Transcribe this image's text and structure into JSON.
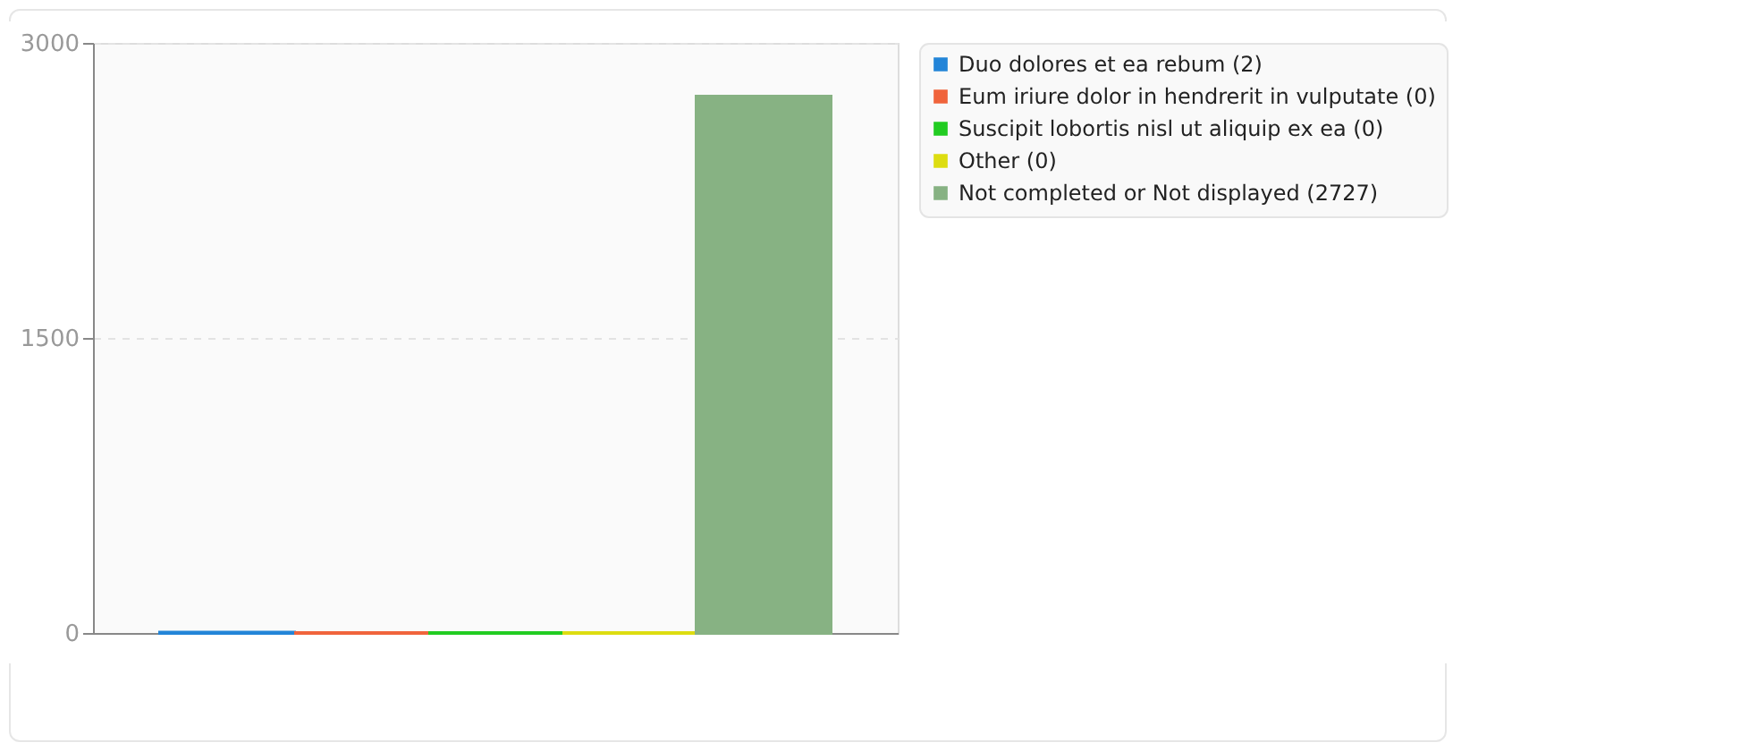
{
  "chart_data": {
    "type": "bar",
    "categories": [
      null,
      null,
      null,
      null,
      null
    ],
    "series": [
      {
        "name": "Duo dolores et ea rebum (2)",
        "color": "#2385d8",
        "values": [
          2,
          null,
          null,
          null,
          null
        ]
      },
      {
        "name": "Eum iriure dolor in hendrerit in vulputate (0)",
        "color": "#f0643c",
        "values": [
          null,
          0,
          null,
          null,
          null
        ]
      },
      {
        "name": "Suscipit lobortis nisl ut aliquip ex ea (0)",
        "color": "#22cc22",
        "values": [
          null,
          null,
          0,
          null,
          null
        ]
      },
      {
        "name": "Other (0)",
        "color": "#dddd11",
        "values": [
          null,
          null,
          null,
          0,
          null
        ]
      },
      {
        "name": "Not completed or Not displayed (2727)",
        "color": "#87b283",
        "values": [
          null,
          null,
          null,
          null,
          2727
        ]
      }
    ],
    "ylim": [
      0,
      3000
    ],
    "yticks": [
      0,
      1500,
      3000
    ],
    "grid": "y",
    "legend": "top right",
    "tick_labels": "y"
  }
}
